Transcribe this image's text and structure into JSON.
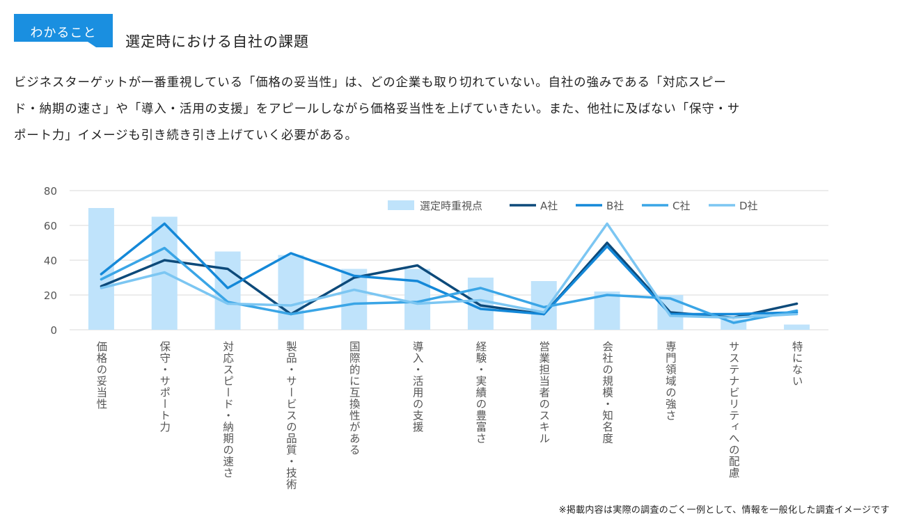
{
  "header": {
    "tag_label": "わかること",
    "title": "選定時における自社の課題"
  },
  "description": {
    "lines": [
      "ビジネスターゲットが一番重視している「価格の妥当性」は、どの企業も取り切れていない。自社の強みである「対応スピー",
      "ド・納期の速さ」や「導入・活用の支援」をアピールしながら価格妥当性を上げていきたい。また、他社に及ばない「保守・サ",
      "ポート力」イメージも引き続き引き上げていく必要がある。"
    ]
  },
  "footnote": "※掲載内容は実際の調査のごく一例として、情報を一般化した調査イメージです",
  "colors": {
    "tag": "#1a8fe0",
    "bar": "#bfe3fb",
    "A": "#0d4a7a",
    "B": "#1488d8",
    "C": "#3aa5e6",
    "D": "#7cc6f2",
    "grid": "#d9d9d9",
    "axis_text": "#555555"
  },
  "chart_data": {
    "type": "bar",
    "title": "",
    "xlabel": "",
    "ylabel": "",
    "ylim": [
      0,
      80
    ],
    "yticks": [
      0,
      20,
      40,
      60,
      80
    ],
    "grid": true,
    "legend_position": "top-right",
    "categories": [
      "価格の妥当性",
      "保守・サポート力",
      "対応スピード・納期の速さ",
      "製品・サービスの品質・技術",
      "国際的に互換性がある",
      "導入・活用の支援",
      "経験・実績の豊富さ",
      "営業担当者のスキル",
      "会社の規模・知名度",
      "専門領域の強さ",
      "サステナビリティへの配慮",
      "特にない"
    ],
    "bar_series": {
      "name": "選定時重視点",
      "values": [
        70,
        65,
        45,
        43,
        35,
        35,
        30,
        28,
        22,
        20,
        6,
        3
      ]
    },
    "series": [
      {
        "name": "A社",
        "values": [
          25,
          40,
          35,
          9,
          30,
          37,
          14,
          9,
          50,
          10,
          7,
          15
        ]
      },
      {
        "name": "B社",
        "values": [
          32,
          61,
          24,
          44,
          31,
          28,
          12,
          9,
          48,
          9,
          9,
          10
        ]
      },
      {
        "name": "C社",
        "values": [
          29,
          47,
          16,
          9,
          15,
          16,
          24,
          13,
          20,
          18,
          4,
          11
        ]
      },
      {
        "name": "D社",
        "values": [
          24,
          33,
          15,
          14,
          23,
          15,
          17,
          10,
          61,
          8,
          7,
          9
        ]
      }
    ]
  }
}
